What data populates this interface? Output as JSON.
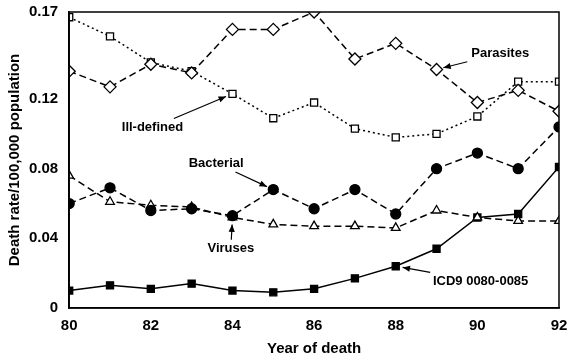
{
  "chart_data": {
    "type": "line",
    "x_label": "Year of death",
    "y_label": "Death rate/100,000 population",
    "x": [
      80,
      81,
      82,
      83,
      84,
      85,
      86,
      87,
      88,
      89,
      90,
      91,
      92
    ],
    "xlim": [
      80,
      92
    ],
    "xticks": [
      80,
      82,
      84,
      86,
      88,
      90,
      92
    ],
    "ylim": [
      0,
      0.17
    ],
    "yticks": [
      0,
      0.04,
      0.08,
      0.12,
      0.17
    ],
    "grid": false,
    "series": [
      {
        "name": "Parasites",
        "color": "#000000",
        "marker": "diamond-open",
        "line_style": "dashed",
        "values": [
          0.136,
          0.127,
          0.14,
          0.135,
          0.16,
          0.16,
          0.17,
          0.143,
          0.152,
          0.137,
          0.118,
          0.125,
          0.113
        ]
      },
      {
        "name": "Ill-defined",
        "color": "#000000",
        "marker": "square-open",
        "line_style": "dotted",
        "values": [
          0.167,
          0.156,
          0.141,
          0.136,
          0.123,
          0.109,
          0.118,
          0.103,
          0.098,
          0.1,
          0.11,
          0.13,
          0.13
        ]
      },
      {
        "name": "Bacterial",
        "color": "#000000",
        "marker": "circle",
        "line_style": "dashed",
        "values": [
          0.06,
          0.069,
          0.056,
          0.057,
          0.053,
          0.068,
          0.057,
          0.068,
          0.054,
          0.08,
          0.089,
          0.08,
          0.104
        ]
      },
      {
        "name": "Viruses",
        "color": "#000000",
        "marker": "triangle-open",
        "line_style": "dashed",
        "values": [
          0.076,
          0.061,
          0.059,
          0.058,
          0.052,
          0.048,
          0.047,
          0.047,
          0.046,
          0.056,
          0.052,
          0.05,
          0.05
        ]
      },
      {
        "name": "ICD9 0080-0085",
        "color": "#000000",
        "marker": "square",
        "line_style": "solid",
        "values": [
          0.01,
          0.013,
          0.011,
          0.014,
          0.01,
          0.009,
          0.011,
          0.017,
          0.024,
          0.034,
          0.052,
          0.054,
          0.081
        ]
      }
    ]
  }
}
